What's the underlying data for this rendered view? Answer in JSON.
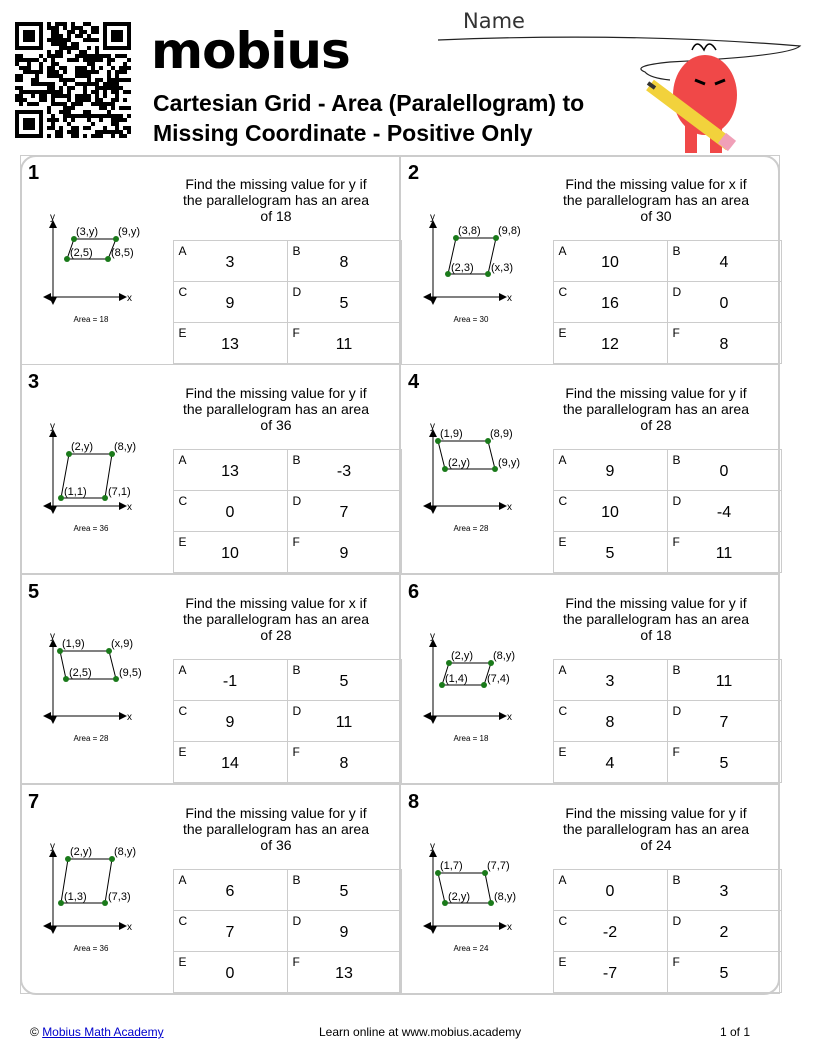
{
  "header": {
    "logo": "mobius",
    "title_line1": "Cartesian Grid - Area (Paralellogram) to",
    "title_line2": "Missing Coordinate - Positive Only",
    "name_label": "Name"
  },
  "colors": {
    "point": "#1a7a1a",
    "border": "#cccccc",
    "mascot": "#f04848",
    "pencil": "#f2d23c"
  },
  "problems": [
    {
      "number": "1",
      "question": "Find the missing value for y if the parallelogram has an area of 18",
      "labels": {
        "tl": "(3,y)",
        "tr": "(9,y)",
        "bl": "(2,5)",
        "br": "(8,5)"
      },
      "area": "Area = 18",
      "options": [
        [
          "A",
          "3"
        ],
        [
          "B",
          "8"
        ],
        [
          "C",
          "9"
        ],
        [
          "D",
          "5"
        ],
        [
          "E",
          "13"
        ],
        [
          "F",
          "11"
        ]
      ]
    },
    {
      "number": "2",
      "question": "Find the missing value for x if the parallelogram has an area of 30",
      "labels": {
        "tl": "(3,8)",
        "tr": "(9,8)",
        "bl": "(2,3)",
        "br": "(x,3)"
      },
      "area": "Area = 30",
      "options": [
        [
          "A",
          "10"
        ],
        [
          "B",
          "4"
        ],
        [
          "C",
          "16"
        ],
        [
          "D",
          "0"
        ],
        [
          "E",
          "12"
        ],
        [
          "F",
          "8"
        ]
      ]
    },
    {
      "number": "3",
      "question": "Find the missing value for y if the parallelogram has an area of 36",
      "labels": {
        "tl": "(2,y)",
        "tr": "(8,y)",
        "bl": "(1,1)",
        "br": "(7,1)"
      },
      "area": "Area = 36",
      "options": [
        [
          "A",
          "13"
        ],
        [
          "B",
          "-3"
        ],
        [
          "C",
          "0"
        ],
        [
          "D",
          "7"
        ],
        [
          "E",
          "10"
        ],
        [
          "F",
          "9"
        ]
      ]
    },
    {
      "number": "4",
      "question": "Find the missing value for y if the parallelogram has an area of 28",
      "labels": {
        "tl": "(1,9)",
        "tr": "(8,9)",
        "bl": "(2,y)",
        "br": "(9,y)"
      },
      "area": "Area = 28",
      "options": [
        [
          "A",
          "9"
        ],
        [
          "B",
          "0"
        ],
        [
          "C",
          "10"
        ],
        [
          "D",
          "-4"
        ],
        [
          "E",
          "5"
        ],
        [
          "F",
          "11"
        ]
      ]
    },
    {
      "number": "5",
      "question": "Find the missing value for x if the parallelogram has an area of 28",
      "labels": {
        "tl": "(1,9)",
        "tr": "(x,9)",
        "bl": "(2,5)",
        "br": "(9,5)"
      },
      "area": "Area = 28",
      "options": [
        [
          "A",
          "-1"
        ],
        [
          "B",
          "5"
        ],
        [
          "C",
          "9"
        ],
        [
          "D",
          "11"
        ],
        [
          "E",
          "14"
        ],
        [
          "F",
          "8"
        ]
      ]
    },
    {
      "number": "6",
      "question": "Find the missing value for y if the parallelogram has an area of 18",
      "labels": {
        "tl": "(2,y)",
        "tr": "(8,y)",
        "bl": "(1,4)",
        "br": "(7,4)"
      },
      "area": "Area = 18",
      "options": [
        [
          "A",
          "3"
        ],
        [
          "B",
          "11"
        ],
        [
          "C",
          "8"
        ],
        [
          "D",
          "7"
        ],
        [
          "E",
          "4"
        ],
        [
          "F",
          "5"
        ]
      ]
    },
    {
      "number": "7",
      "question": "Find the missing value for y if the parallelogram has an area of 36",
      "labels": {
        "tl": "(2,y)",
        "tr": "(8,y)",
        "bl": "(1,3)",
        "br": "(7,3)"
      },
      "area": "Area = 36",
      "options": [
        [
          "A",
          "6"
        ],
        [
          "B",
          "5"
        ],
        [
          "C",
          "7"
        ],
        [
          "D",
          "9"
        ],
        [
          "E",
          "0"
        ],
        [
          "F",
          "13"
        ]
      ]
    },
    {
      "number": "8",
      "question": "Find the missing value for y if the parallelogram has an area of 24",
      "labels": {
        "tl": "(1,7)",
        "tr": "(7,7)",
        "bl": "(2,y)",
        "br": "(8,y)"
      },
      "area": "Area = 24",
      "options": [
        [
          "A",
          "0"
        ],
        [
          "B",
          "3"
        ],
        [
          "C",
          "-2"
        ],
        [
          "D",
          "2"
        ],
        [
          "E",
          "-7"
        ],
        [
          "F",
          "5"
        ]
      ]
    }
  ],
  "footer": {
    "copyright": "©",
    "link": "Mobius Math Academy",
    "center": "Learn online at www.mobius.academy",
    "page": "1 of 1"
  }
}
